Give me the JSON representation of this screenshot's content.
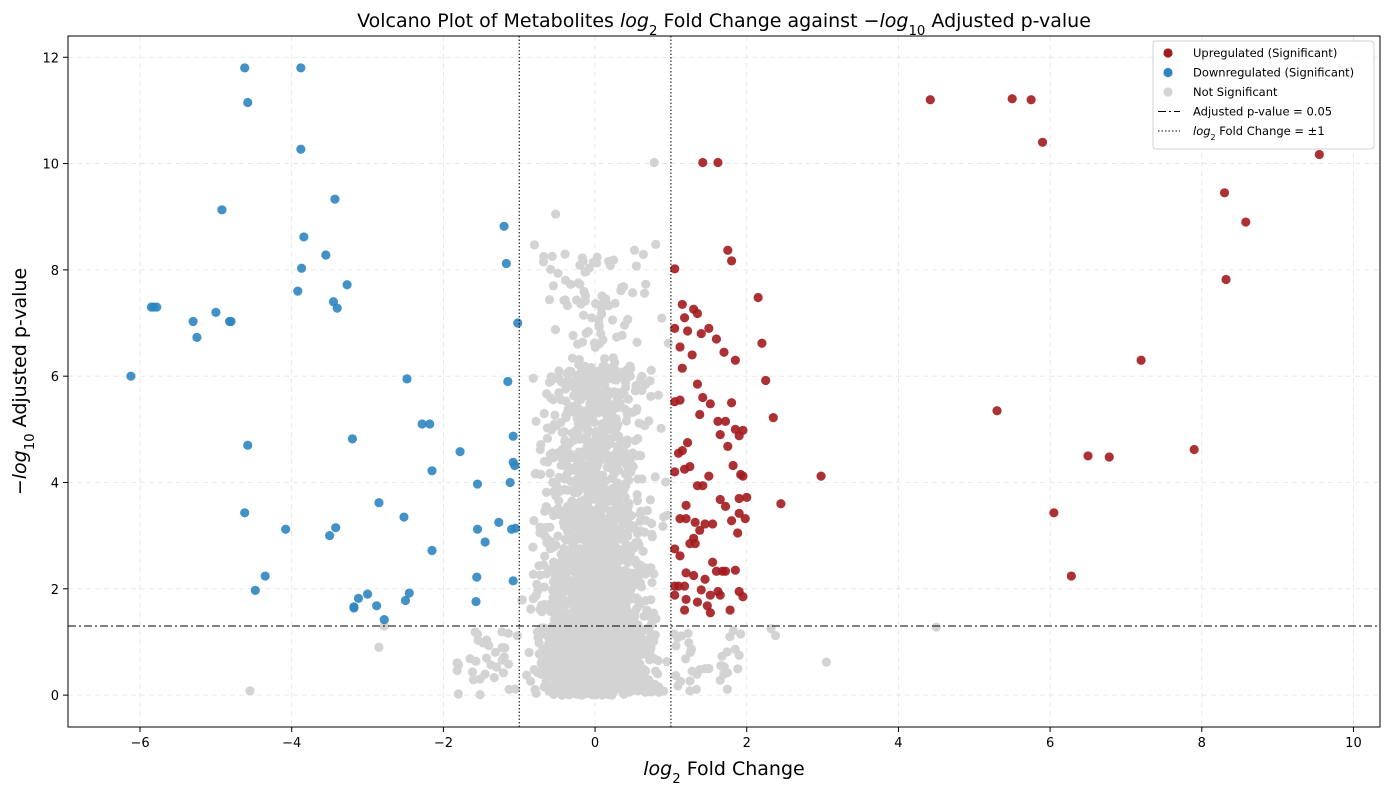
{
  "chart_data": {
    "type": "scatter",
    "title": "Volcano Plot of Metabolites log₂ Fold Change against −log₁₀ Adjusted p-value",
    "xlabel": "log₂ Fold Change",
    "ylabel": "−log₁₀ Adjusted p-value",
    "xlim": [
      -6.95,
      10.35
    ],
    "ylim": [
      -0.6,
      12.4
    ],
    "xticks": [
      -6,
      -4,
      -2,
      0,
      2,
      4,
      6,
      8,
      10
    ],
    "yticks": [
      0,
      2,
      4,
      6,
      8,
      10,
      12
    ],
    "grid": true,
    "legend_position": "top-right",
    "colors": {
      "up": "#a31b1e",
      "down": "#2e86c1",
      "ns": "#d3d3d3"
    },
    "legend": [
      {
        "label": "Upregulated (Significant)",
        "kind": "marker",
        "color": "#a31b1e"
      },
      {
        "label": "Downregulated (Significant)",
        "kind": "marker",
        "color": "#2e86c1"
      },
      {
        "label": "Not Significant",
        "kind": "marker",
        "color": "#d3d3d3"
      },
      {
        "label": "Adjusted p-value = 0.05",
        "kind": "dashdot"
      },
      {
        "label": "log₂ Fold Change = ±1",
        "kind": "dotted"
      }
    ],
    "reference_lines": {
      "horizontal": 1.3,
      "vertical": [
        -1,
        1
      ]
    },
    "series": [
      {
        "name": "Upregulated (Significant)",
        "points": [
          [
            4.42,
            11.2
          ],
          [
            5.5,
            11.22
          ],
          [
            5.75,
            11.2
          ],
          [
            5.9,
            10.4
          ],
          [
            9.55,
            10.17
          ],
          [
            8.3,
            9.45
          ],
          [
            8.58,
            8.9
          ],
          [
            8.32,
            7.82
          ],
          [
            7.2,
            6.3
          ],
          [
            5.3,
            5.35
          ],
          [
            7.9,
            4.62
          ],
          [
            6.5,
            4.5
          ],
          [
            6.78,
            4.48
          ],
          [
            6.05,
            3.43
          ],
          [
            6.28,
            2.24
          ],
          [
            2.98,
            4.12
          ],
          [
            1.42,
            10.02
          ],
          [
            1.62,
            10.02
          ],
          [
            1.75,
            8.37
          ],
          [
            1.8,
            8.17
          ],
          [
            1.05,
            8.02
          ],
          [
            2.15,
            7.48
          ],
          [
            1.15,
            7.35
          ],
          [
            1.3,
            7.26
          ],
          [
            1.18,
            7.1
          ],
          [
            1.35,
            7.18
          ],
          [
            1.5,
            6.9
          ],
          [
            1.05,
            6.9
          ],
          [
            1.22,
            6.85
          ],
          [
            1.4,
            6.8
          ],
          [
            1.6,
            6.7
          ],
          [
            1.85,
            6.3
          ],
          [
            1.7,
            6.45
          ],
          [
            2.2,
            6.62
          ],
          [
            1.12,
            6.55
          ],
          [
            1.28,
            6.4
          ],
          [
            1.15,
            6.15
          ],
          [
            2.25,
            5.92
          ],
          [
            1.35,
            5.85
          ],
          [
            1.12,
            5.55
          ],
          [
            1.05,
            5.52
          ],
          [
            1.42,
            5.6
          ],
          [
            1.52,
            5.48
          ],
          [
            1.8,
            5.5
          ],
          [
            1.62,
            5.15
          ],
          [
            1.72,
            5.15
          ],
          [
            2.35,
            5.22
          ],
          [
            1.38,
            5.28
          ],
          [
            1.15,
            4.6
          ],
          [
            1.22,
            4.75
          ],
          [
            1.65,
            4.9
          ],
          [
            1.85,
            5.0
          ],
          [
            1.95,
            4.98
          ],
          [
            1.1,
            4.55
          ],
          [
            1.75,
            4.68
          ],
          [
            1.9,
            4.88
          ],
          [
            1.82,
            4.32
          ],
          [
            1.18,
            4.25
          ],
          [
            1.25,
            4.3
          ],
          [
            1.5,
            4.12
          ],
          [
            1.05,
            4.2
          ],
          [
            1.92,
            4.15
          ],
          [
            1.95,
            4.12
          ],
          [
            1.35,
            3.94
          ],
          [
            1.42,
            3.94
          ],
          [
            1.65,
            3.68
          ],
          [
            1.72,
            3.55
          ],
          [
            1.9,
            3.7
          ],
          [
            2.0,
            3.72
          ],
          [
            2.45,
            3.6
          ],
          [
            1.2,
            3.57
          ],
          [
            1.12,
            3.32
          ],
          [
            1.2,
            3.32
          ],
          [
            1.32,
            3.25
          ],
          [
            1.45,
            3.22
          ],
          [
            1.55,
            3.22
          ],
          [
            1.8,
            3.28
          ],
          [
            1.9,
            3.42
          ],
          [
            1.98,
            3.32
          ],
          [
            1.88,
            3.05
          ],
          [
            1.38,
            3.1
          ],
          [
            1.3,
            2.95
          ],
          [
            1.32,
            2.85
          ],
          [
            1.25,
            2.85
          ],
          [
            1.05,
            2.75
          ],
          [
            1.12,
            2.62
          ],
          [
            1.55,
            2.5
          ],
          [
            1.6,
            2.33
          ],
          [
            1.68,
            2.33
          ],
          [
            1.72,
            2.33
          ],
          [
            1.85,
            2.35
          ],
          [
            1.2,
            2.3
          ],
          [
            1.3,
            2.25
          ],
          [
            1.45,
            2.18
          ],
          [
            1.1,
            2.05
          ],
          [
            1.05,
            2.05
          ],
          [
            1.18,
            2.05
          ],
          [
            1.4,
            1.98
          ],
          [
            1.62,
            1.95
          ],
          [
            1.65,
            1.88
          ],
          [
            1.9,
            1.95
          ],
          [
            1.95,
            1.85
          ],
          [
            1.52,
            1.88
          ],
          [
            1.2,
            1.8
          ],
          [
            1.35,
            1.75
          ],
          [
            1.48,
            1.68
          ],
          [
            1.78,
            1.6
          ],
          [
            1.18,
            1.6
          ],
          [
            1.52,
            1.55
          ],
          [
            1.05,
            1.88
          ]
        ]
      },
      {
        "name": "Downregulated (Significant)",
        "points": [
          [
            -4.62,
            11.8
          ],
          [
            -3.88,
            11.8
          ],
          [
            -4.58,
            11.15
          ],
          [
            -3.88,
            10.27
          ],
          [
            -4.92,
            9.13
          ],
          [
            -3.43,
            9.33
          ],
          [
            -1.2,
            8.82
          ],
          [
            -3.84,
            8.62
          ],
          [
            -3.55,
            8.28
          ],
          [
            -1.17,
            8.12
          ],
          [
            -3.87,
            8.03
          ],
          [
            -3.27,
            7.72
          ],
          [
            -3.92,
            7.6
          ],
          [
            -3.45,
            7.4
          ],
          [
            -5.85,
            7.3
          ],
          [
            -5.78,
            7.3
          ],
          [
            -5.82,
            7.3
          ],
          [
            -3.4,
            7.28
          ],
          [
            -5.0,
            7.2
          ],
          [
            -4.82,
            7.03
          ],
          [
            -4.8,
            7.03
          ],
          [
            -5.3,
            7.03
          ],
          [
            -1.02,
            7.0
          ],
          [
            -5.25,
            6.73
          ],
          [
            -6.12,
            6.0
          ],
          [
            -2.48,
            5.95
          ],
          [
            -1.15,
            5.9
          ],
          [
            -2.28,
            5.1
          ],
          [
            -2.18,
            5.1
          ],
          [
            -1.08,
            4.87
          ],
          [
            -3.2,
            4.82
          ],
          [
            -4.58,
            4.7
          ],
          [
            -1.78,
            4.58
          ],
          [
            -1.08,
            4.38
          ],
          [
            -1.06,
            4.32
          ],
          [
            -2.15,
            4.22
          ],
          [
            -1.12,
            4.0
          ],
          [
            -1.55,
            3.97
          ],
          [
            -2.85,
            3.62
          ],
          [
            -4.62,
            3.43
          ],
          [
            -2.52,
            3.35
          ],
          [
            -1.27,
            3.25
          ],
          [
            -3.42,
            3.15
          ],
          [
            -4.08,
            3.12
          ],
          [
            -1.55,
            3.12
          ],
          [
            -1.1,
            3.12
          ],
          [
            -1.05,
            3.14
          ],
          [
            -3.5,
            3.0
          ],
          [
            -1.45,
            2.88
          ],
          [
            -2.15,
            2.72
          ],
          [
            -4.35,
            2.24
          ],
          [
            -1.56,
            2.22
          ],
          [
            -1.08,
            2.15
          ],
          [
            -4.48,
            1.97
          ],
          [
            -3.0,
            1.9
          ],
          [
            -2.45,
            1.92
          ],
          [
            -3.12,
            1.82
          ],
          [
            -2.5,
            1.78
          ],
          [
            -1.57,
            1.76
          ],
          [
            -2.88,
            1.68
          ],
          [
            -3.18,
            1.66
          ],
          [
            -3.18,
            1.64
          ],
          [
            -2.78,
            1.42
          ]
        ]
      }
    ],
    "not_significant_summary": {
      "name": "Not Significant",
      "description_points": [
        [
          -4.55,
          0.08
        ],
        [
          -2.85,
          0.9
        ],
        [
          -2.78,
          1.3
        ],
        [
          4.5,
          1.28
        ],
        [
          3.05,
          0.62
        ],
        [
          2.38,
          1.12
        ],
        [
          2.32,
          1.25
        ],
        [
          0.78,
          10.02
        ],
        [
          -0.52,
          9.05
        ],
        [
          -0.8,
          8.47
        ],
        [
          -0.68,
          8.15
        ],
        [
          -0.55,
          7.7
        ],
        [
          0.8,
          8.48
        ],
        [
          0.52,
          8.37
        ],
        [
          -0.2,
          7.73
        ],
        [
          0.35,
          7.67
        ],
        [
          1.92,
          1.15
        ],
        [
          1.9,
          0.75
        ],
        [
          1.65,
          0.28
        ],
        [
          1.5,
          0.5
        ],
        [
          1.38,
          0.48
        ],
        [
          1.25,
          0.08
        ],
        [
          -0.15,
          4.82
        ],
        [
          0.18,
          4.82
        ],
        [
          -1.55,
          1.15
        ]
      ]
    }
  }
}
